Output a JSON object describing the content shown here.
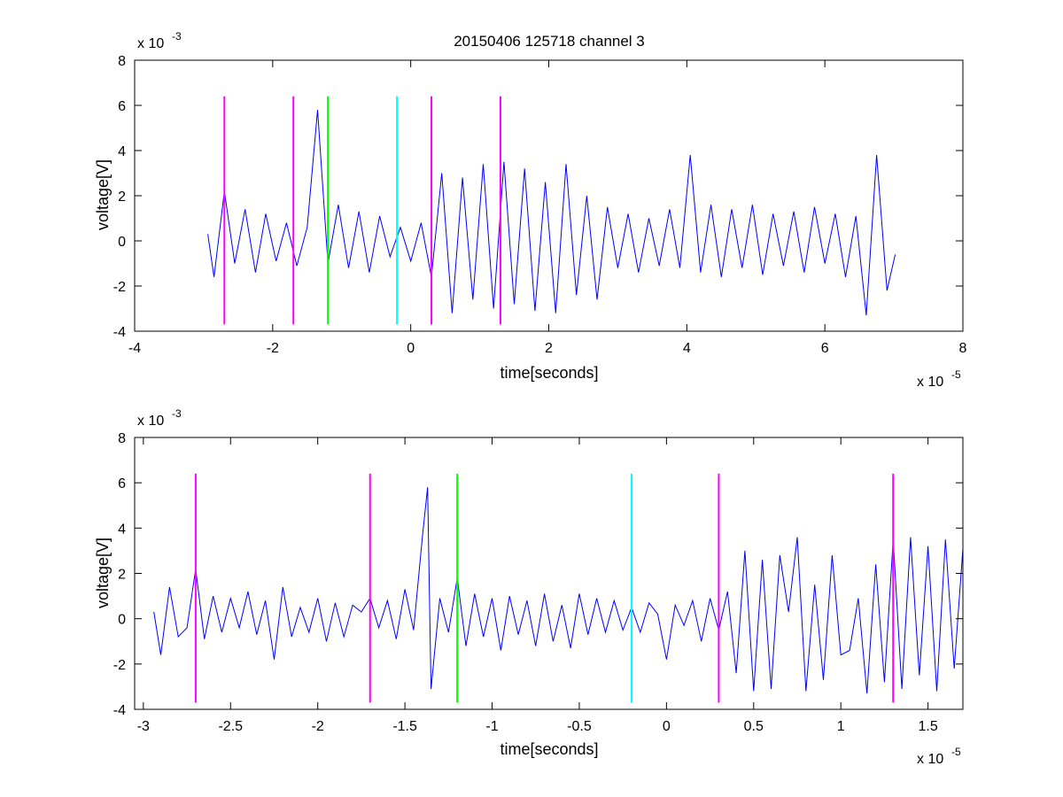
{
  "chart_data": [
    {
      "type": "line",
      "title": "20150406 125718 channel 3",
      "xlabel": "time[seconds]",
      "ylabel": "voltage[V]",
      "x_exponent_label": "x 10",
      "x_exponent": "-5",
      "y_exponent_label": "x 10",
      "y_exponent": "-3",
      "xlim": [
        -4,
        8
      ],
      "ylim": [
        -4,
        8
      ],
      "x_ticks": [
        -4,
        -2,
        0,
        2,
        4,
        6,
        8
      ],
      "y_ticks": [
        -4,
        -2,
        0,
        2,
        4,
        6,
        8
      ],
      "x_tick_labels": [
        "-4",
        "-2",
        "0",
        "2",
        "4",
        "6",
        "8"
      ],
      "y_tick_labels": [
        "-4",
        "-2",
        "0",
        "2",
        "4",
        "6",
        "8"
      ],
      "grid": false,
      "series": [
        {
          "color": "#0000ff",
          "x": [
            -2.94,
            -2.85,
            -2.7,
            -2.55,
            -2.4,
            -2.25,
            -2.1,
            -1.95,
            -1.8,
            -1.65,
            -1.5,
            -1.35,
            -1.2,
            -1.05,
            -0.9,
            -0.75,
            -0.6,
            -0.45,
            -0.3,
            -0.15,
            0.0,
            0.15,
            0.3,
            0.45,
            0.6,
            0.75,
            0.9,
            1.05,
            1.2,
            1.35,
            1.5,
            1.65,
            1.8,
            1.95,
            2.1,
            2.25,
            2.4,
            2.55,
            2.7,
            2.85,
            3.0,
            3.15,
            3.3,
            3.45,
            3.6,
            3.75,
            3.9,
            4.05,
            4.2,
            4.35,
            4.5,
            4.65,
            4.8,
            4.95,
            5.1,
            5.25,
            5.4,
            5.55,
            5.7,
            5.85,
            6.0,
            6.15,
            6.3,
            6.45,
            6.6,
            6.75,
            6.9,
            7.02
          ],
          "y": [
            0.3,
            -1.6,
            2.2,
            -1.0,
            1.4,
            -1.4,
            1.2,
            -0.9,
            0.8,
            -1.1,
            0.6,
            5.8,
            -1.0,
            1.6,
            -1.2,
            1.3,
            -1.4,
            1.1,
            -0.7,
            0.6,
            -0.9,
            0.8,
            -1.6,
            3.0,
            -3.2,
            2.8,
            -2.6,
            3.4,
            -3.0,
            3.5,
            -2.8,
            3.2,
            -3.1,
            2.6,
            -3.2,
            3.4,
            -2.4,
            2.0,
            -2.6,
            1.5,
            -1.2,
            1.2,
            -1.4,
            1.0,
            -1.1,
            1.4,
            -1.2,
            3.8,
            -1.4,
            1.6,
            -1.6,
            1.4,
            -1.2,
            1.6,
            -1.5,
            1.2,
            -1.1,
            1.3,
            -1.4,
            1.5,
            -1.0,
            1.2,
            -1.6,
            1.1,
            -3.3,
            3.8,
            -2.2,
            -0.6
          ]
        }
      ],
      "markers": [
        {
          "x": -2.7,
          "color": "#ff00ff"
        },
        {
          "x": -1.7,
          "color": "#ff00ff"
        },
        {
          "x": -1.2,
          "color": "#00ff00"
        },
        {
          "x": -0.2,
          "color": "#00ffff"
        },
        {
          "x": 0.3,
          "color": "#ff00ff"
        },
        {
          "x": 1.3,
          "color": "#ff00ff"
        }
      ],
      "marker_range": [
        -3.7,
        6.4
      ]
    },
    {
      "type": "line",
      "title": "",
      "xlabel": "time[seconds]",
      "ylabel": "voltage[V]",
      "x_exponent_label": "x 10",
      "x_exponent": "-5",
      "y_exponent_label": "x 10",
      "y_exponent": "-3",
      "xlim": [
        -3.05,
        1.7
      ],
      "ylim": [
        -4,
        8
      ],
      "x_ticks": [
        -3,
        -2.5,
        -2,
        -1.5,
        -1,
        -0.5,
        0,
        0.5,
        1,
        1.5
      ],
      "y_ticks": [
        -4,
        -2,
        0,
        2,
        4,
        6,
        8
      ],
      "x_tick_labels": [
        "-3",
        "-2.5",
        "-2",
        "-1.5",
        "-1",
        "-0.5",
        "0",
        "0.5",
        "1",
        "1.5"
      ],
      "y_tick_labels": [
        "-4",
        "-2",
        "0",
        "2",
        "4",
        "6",
        "8"
      ],
      "grid": false,
      "series": [
        {
          "color": "#0000ff",
          "x": [
            -2.94,
            -2.9,
            -2.85,
            -2.8,
            -2.75,
            -2.7,
            -2.65,
            -2.6,
            -2.55,
            -2.5,
            -2.45,
            -2.4,
            -2.35,
            -2.3,
            -2.25,
            -2.2,
            -2.15,
            -2.1,
            -2.05,
            -2.0,
            -1.95,
            -1.9,
            -1.85,
            -1.8,
            -1.75,
            -1.7,
            -1.65,
            -1.6,
            -1.55,
            -1.5,
            -1.45,
            -1.4,
            -1.37,
            -1.35,
            -1.3,
            -1.25,
            -1.2,
            -1.15,
            -1.1,
            -1.05,
            -1.0,
            -0.95,
            -0.9,
            -0.85,
            -0.8,
            -0.75,
            -0.7,
            -0.65,
            -0.6,
            -0.55,
            -0.5,
            -0.45,
            -0.4,
            -0.35,
            -0.3,
            -0.25,
            -0.2,
            -0.15,
            -0.1,
            -0.05,
            0.0,
            0.05,
            0.1,
            0.15,
            0.2,
            0.25,
            0.3,
            0.35,
            0.4,
            0.45,
            0.5,
            0.55,
            0.6,
            0.65,
            0.7,
            0.75,
            0.8,
            0.85,
            0.9,
            0.95,
            1.0,
            1.05,
            1.1,
            1.15,
            1.2,
            1.25,
            1.3,
            1.35,
            1.4,
            1.45,
            1.5,
            1.55,
            1.6,
            1.65,
            1.7
          ],
          "y": [
            0.3,
            -1.6,
            1.4,
            -0.8,
            -0.4,
            2.2,
            -0.9,
            1.0,
            -0.6,
            0.9,
            -0.4,
            1.2,
            -0.7,
            0.8,
            -1.8,
            1.4,
            -0.8,
            0.5,
            -0.6,
            0.9,
            -1.0,
            0.7,
            -0.8,
            0.6,
            0.3,
            0.9,
            -0.4,
            0.8,
            -0.9,
            1.3,
            -0.5,
            3.6,
            5.8,
            -3.1,
            0.9,
            -0.6,
            1.8,
            -1.2,
            1.1,
            -0.8,
            0.9,
            -1.4,
            1.0,
            -0.7,
            0.8,
            -1.2,
            1.1,
            -1.0,
            0.6,
            -1.3,
            1.1,
            -0.7,
            0.9,
            -0.6,
            0.8,
            -0.5,
            0.5,
            -0.6,
            0.7,
            0.2,
            -1.8,
            0.6,
            -0.3,
            0.8,
            -1.0,
            0.9,
            -0.5,
            1.2,
            -2.4,
            3.0,
            -3.2,
            2.6,
            -3.1,
            2.8,
            0.3,
            3.6,
            -3.2,
            1.5,
            -2.7,
            2.8,
            -1.6,
            -1.4,
            0.9,
            -3.3,
            2.4,
            -2.8,
            3.5,
            -3.1,
            3.6,
            -2.5,
            3.2,
            -3.2,
            3.5,
            -2.2,
            3.1
          ]
        }
      ],
      "markers": [
        {
          "x": -2.7,
          "color": "#ff00ff"
        },
        {
          "x": -1.7,
          "color": "#ff00ff"
        },
        {
          "x": -1.2,
          "color": "#00ff00"
        },
        {
          "x": -0.2,
          "color": "#00ffff"
        },
        {
          "x": 0.3,
          "color": "#ff00ff"
        },
        {
          "x": 1.3,
          "color": "#ff00ff"
        }
      ],
      "marker_range": [
        -3.7,
        6.4
      ]
    }
  ]
}
